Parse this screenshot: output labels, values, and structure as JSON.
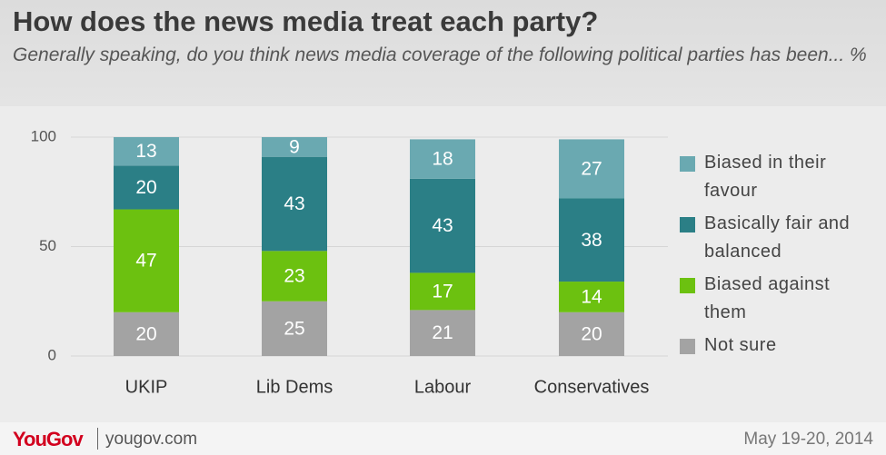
{
  "chart_data": {
    "type": "stacked_bar",
    "title": "How does the news media treat each party?",
    "subtitle": "Generally speaking, do you think news media coverage of the following political parties has been... %",
    "categories": [
      "UKIP",
      "Lib Dems",
      "Labour",
      "Conservatives"
    ],
    "series": [
      {
        "name": "Not sure",
        "color": "#a3a3a3",
        "values": [
          20,
          25,
          21,
          20
        ]
      },
      {
        "name": "Biased against them",
        "color": "#6cc110",
        "values": [
          47,
          23,
          17,
          14
        ]
      },
      {
        "name": "Basically fair and balanced",
        "color": "#2b7f86",
        "values": [
          20,
          43,
          43,
          38
        ]
      },
      {
        "name": "Biased in their favour",
        "color": "#6aa9b1",
        "values": [
          13,
          9,
          18,
          27
        ]
      }
    ],
    "ylim": [
      0,
      100
    ],
    "yticks": [
      0,
      50,
      100
    ],
    "grid": true,
    "legend": "right"
  },
  "footer": {
    "logo": "YouGov",
    "site": "yougov.com",
    "date": "May 19-20, 2014"
  }
}
